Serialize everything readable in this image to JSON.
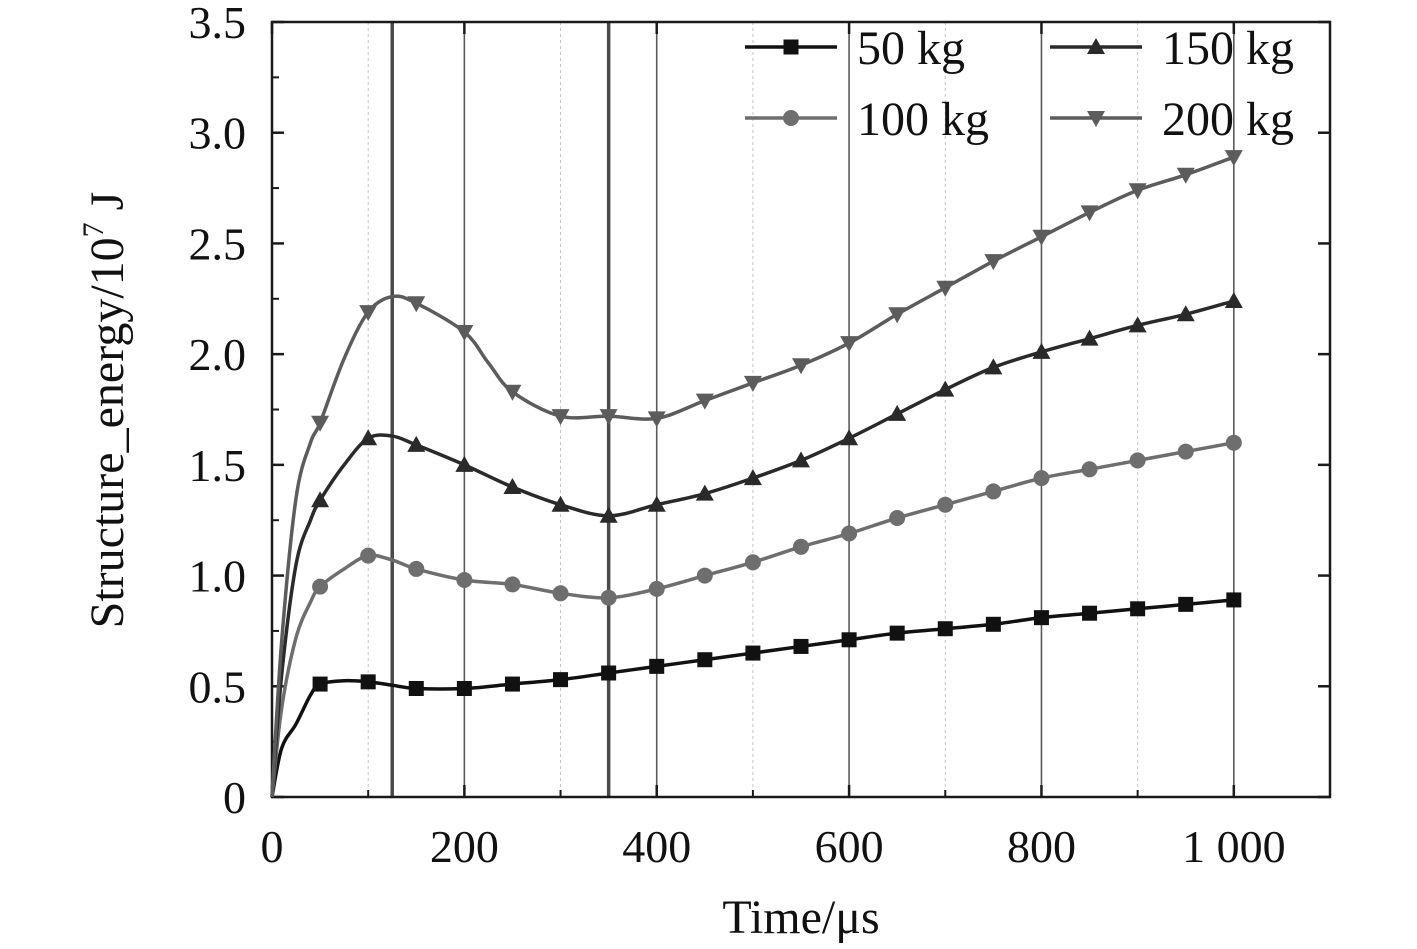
{
  "chart_data": {
    "type": "line",
    "title": "",
    "xlabel": "Time/μs",
    "ylabel": {
      "prefix": "Structure_energy/10",
      "sup": "7",
      "suffix": " J"
    },
    "xlim": [
      0,
      1100
    ],
    "ylim": [
      0,
      3.5
    ],
    "x_ticks": [
      0,
      200,
      400,
      600,
      800,
      1000
    ],
    "x_tick_labels": [
      "0",
      "200",
      "400",
      "600",
      "800",
      "1 000"
    ],
    "y_ticks": [
      0,
      0.5,
      1.0,
      1.5,
      2.0,
      2.5,
      3.0,
      3.5
    ],
    "y_tick_labels": [
      "0",
      "0.5",
      "1.0",
      "1.5",
      "2.0",
      "2.5",
      "3.0",
      "3.5"
    ],
    "vertical_lines": {
      "thin": [
        100,
        200,
        300,
        400,
        500,
        600,
        700,
        800,
        900,
        1000
      ],
      "thick": [
        125,
        350
      ]
    },
    "legend_position": "top-right",
    "series": [
      {
        "name": "50 kg",
        "color": "#111111",
        "marker": "square",
        "markers_x": [
          50,
          100,
          150,
          200,
          250,
          300,
          350,
          400,
          450,
          500,
          550,
          600,
          650,
          700,
          750,
          800,
          850,
          900,
          950,
          1000
        ],
        "markers_y": [
          0.51,
          0.52,
          0.49,
          0.49,
          0.51,
          0.53,
          0.56,
          0.59,
          0.62,
          0.65,
          0.68,
          0.71,
          0.74,
          0.76,
          0.78,
          0.81,
          0.83,
          0.85,
          0.87,
          0.89
        ],
        "curve": [
          [
            0,
            0
          ],
          [
            10,
            0.22
          ],
          [
            25,
            0.33
          ],
          [
            40,
            0.46
          ],
          [
            50,
            0.51
          ],
          [
            75,
            0.525
          ],
          [
            100,
            0.52
          ],
          [
            125,
            0.505
          ],
          [
            150,
            0.49
          ],
          [
            200,
            0.49
          ],
          [
            250,
            0.51
          ],
          [
            300,
            0.53
          ],
          [
            350,
            0.56
          ],
          [
            400,
            0.59
          ],
          [
            450,
            0.62
          ],
          [
            500,
            0.65
          ],
          [
            550,
            0.68
          ],
          [
            600,
            0.71
          ],
          [
            650,
            0.74
          ],
          [
            700,
            0.76
          ],
          [
            750,
            0.78
          ],
          [
            800,
            0.81
          ],
          [
            850,
            0.83
          ],
          [
            900,
            0.85
          ],
          [
            950,
            0.87
          ],
          [
            1000,
            0.89
          ]
        ]
      },
      {
        "name": "100 kg",
        "color": "#6e6e6e",
        "marker": "circle",
        "markers_x": [
          50,
          100,
          150,
          200,
          250,
          300,
          350,
          400,
          450,
          500,
          550,
          600,
          650,
          700,
          750,
          800,
          850,
          900,
          950,
          1000
        ],
        "markers_y": [
          0.95,
          1.09,
          1.03,
          0.98,
          0.96,
          0.92,
          0.9,
          0.94,
          1.0,
          1.06,
          1.13,
          1.19,
          1.26,
          1.32,
          1.38,
          1.44,
          1.48,
          1.52,
          1.56,
          1.6
        ],
        "curve": [
          [
            0,
            0
          ],
          [
            10,
            0.4
          ],
          [
            25,
            0.72
          ],
          [
            40,
            0.88
          ],
          [
            50,
            0.95
          ],
          [
            75,
            1.03
          ],
          [
            100,
            1.09
          ],
          [
            125,
            1.07
          ],
          [
            150,
            1.03
          ],
          [
            200,
            0.98
          ],
          [
            250,
            0.96
          ],
          [
            300,
            0.92
          ],
          [
            350,
            0.9
          ],
          [
            400,
            0.94
          ],
          [
            450,
            1.0
          ],
          [
            500,
            1.06
          ],
          [
            550,
            1.13
          ],
          [
            600,
            1.19
          ],
          [
            650,
            1.26
          ],
          [
            700,
            1.32
          ],
          [
            750,
            1.38
          ],
          [
            800,
            1.44
          ],
          [
            850,
            1.48
          ],
          [
            900,
            1.52
          ],
          [
            950,
            1.56
          ],
          [
            1000,
            1.6
          ]
        ]
      },
      {
        "name": "150 kg",
        "color": "#2a2a2a",
        "marker": "triangle-up",
        "markers_x": [
          50,
          100,
          150,
          200,
          250,
          300,
          350,
          400,
          450,
          500,
          550,
          600,
          650,
          700,
          750,
          800,
          850,
          900,
          950,
          1000
        ],
        "markers_y": [
          1.34,
          1.62,
          1.59,
          1.5,
          1.4,
          1.32,
          1.27,
          1.32,
          1.37,
          1.44,
          1.52,
          1.62,
          1.73,
          1.84,
          1.94,
          2.01,
          2.07,
          2.13,
          2.18,
          2.24
        ],
        "curve": [
          [
            0,
            0
          ],
          [
            10,
            0.55
          ],
          [
            25,
            1.05
          ],
          [
            40,
            1.25
          ],
          [
            50,
            1.34
          ],
          [
            75,
            1.5
          ],
          [
            100,
            1.62
          ],
          [
            125,
            1.63
          ],
          [
            150,
            1.59
          ],
          [
            200,
            1.5
          ],
          [
            250,
            1.4
          ],
          [
            300,
            1.32
          ],
          [
            350,
            1.27
          ],
          [
            400,
            1.32
          ],
          [
            450,
            1.37
          ],
          [
            500,
            1.44
          ],
          [
            550,
            1.52
          ],
          [
            600,
            1.62
          ],
          [
            650,
            1.73
          ],
          [
            700,
            1.84
          ],
          [
            750,
            1.94
          ],
          [
            800,
            2.01
          ],
          [
            850,
            2.07
          ],
          [
            900,
            2.13
          ],
          [
            950,
            2.18
          ],
          [
            1000,
            2.24
          ]
        ]
      },
      {
        "name": "200 kg",
        "color": "#5c5c5c",
        "marker": "triangle-down",
        "markers_x": [
          50,
          100,
          150,
          200,
          250,
          300,
          350,
          400,
          450,
          500,
          550,
          600,
          650,
          700,
          750,
          800,
          850,
          900,
          950,
          1000
        ],
        "markers_y": [
          1.69,
          2.19,
          2.23,
          2.1,
          1.83,
          1.72,
          1.72,
          1.71,
          1.79,
          1.87,
          1.95,
          2.05,
          2.18,
          2.3,
          2.42,
          2.53,
          2.64,
          2.74,
          2.81,
          2.89
        ],
        "curve": [
          [
            0,
            0
          ],
          [
            10,
            0.7
          ],
          [
            25,
            1.35
          ],
          [
            40,
            1.6
          ],
          [
            50,
            1.69
          ],
          [
            75,
            1.98
          ],
          [
            100,
            2.19
          ],
          [
            125,
            2.26
          ],
          [
            150,
            2.23
          ],
          [
            200,
            2.1
          ],
          [
            225,
            1.96
          ],
          [
            250,
            1.83
          ],
          [
            300,
            1.72
          ],
          [
            350,
            1.72
          ],
          [
            400,
            1.71
          ],
          [
            450,
            1.79
          ],
          [
            500,
            1.87
          ],
          [
            550,
            1.95
          ],
          [
            600,
            2.05
          ],
          [
            650,
            2.18
          ],
          [
            700,
            2.3
          ],
          [
            750,
            2.42
          ],
          [
            800,
            2.53
          ],
          [
            850,
            2.64
          ],
          [
            900,
            2.74
          ],
          [
            950,
            2.81
          ],
          [
            1000,
            2.89
          ]
        ]
      }
    ]
  }
}
